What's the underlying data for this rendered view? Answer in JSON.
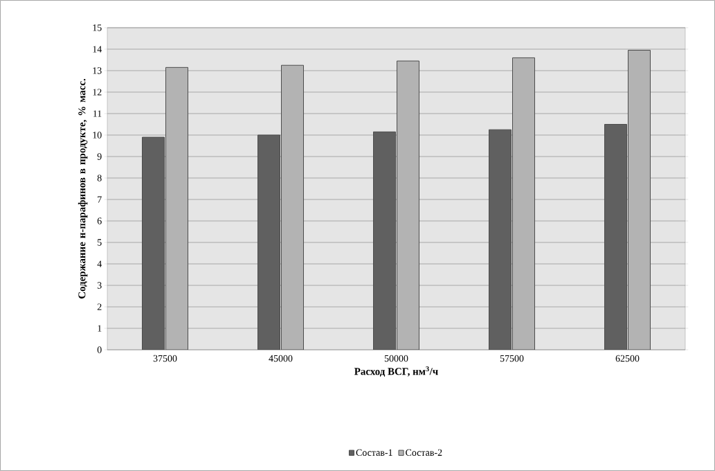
{
  "chart_data": {
    "type": "bar",
    "categories": [
      "37500",
      "45000",
      "50000",
      "57500",
      "62500"
    ],
    "series": [
      {
        "name": "Состав-1",
        "color": "#606060",
        "values": [
          9.9,
          10.0,
          10.15,
          10.25,
          10.5
        ]
      },
      {
        "name": "Состав-2",
        "color": "#b3b3b3",
        "values": [
          13.15,
          13.25,
          13.45,
          13.6,
          13.95
        ]
      }
    ],
    "xlabel": "Расход ВСГ, нм$^{3}$/ч",
    "ylabel": "Содержание н-парафинов в продукте, % масс.",
    "ylim": [
      0,
      15
    ],
    "yticks": [
      0,
      1,
      2,
      3,
      4,
      5,
      6,
      7,
      8,
      9,
      10,
      11,
      12,
      13,
      14,
      15
    ],
    "grid": "y",
    "legend": "bottom"
  }
}
